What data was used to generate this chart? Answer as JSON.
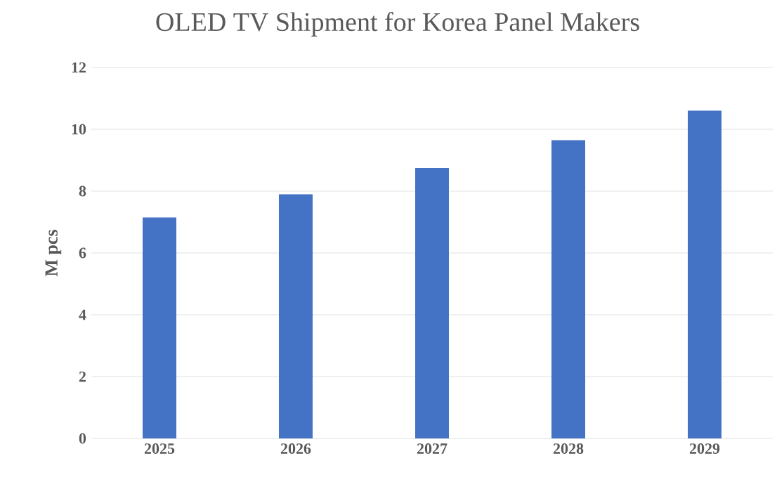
{
  "chart_data": {
    "type": "bar",
    "title": "OLED TV Shipment for Korea Panel Makers",
    "ylabel": "M pcs",
    "categories": [
      "2025",
      "2026",
      "2027",
      "2028",
      "2029"
    ],
    "values": [
      7.15,
      7.9,
      8.75,
      9.65,
      10.6
    ],
    "color": "#4472c4",
    "ylim": [
      0,
      12
    ],
    "yticks": [
      0,
      2,
      4,
      6,
      8,
      10,
      12
    ],
    "grid": "y"
  }
}
